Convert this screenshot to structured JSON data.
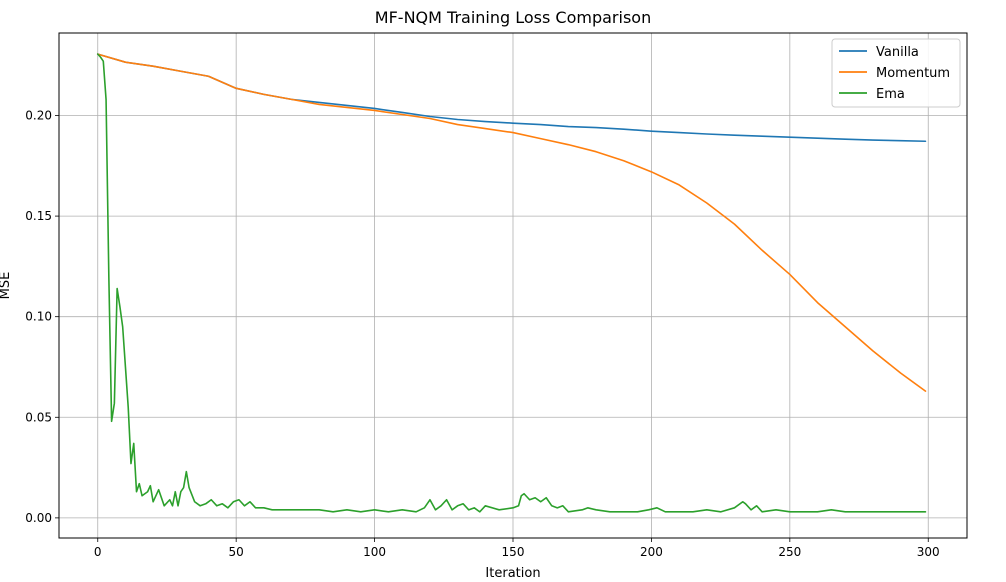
{
  "chart_data": {
    "type": "line",
    "title": "MF-NQM Training Loss Comparison",
    "xlabel": "Iteration",
    "ylabel": "MSE",
    "xlim": [
      -14,
      314
    ],
    "ylim": [
      -0.01,
      0.241
    ],
    "xticks": [
      0,
      50,
      100,
      150,
      200,
      250,
      300
    ],
    "yticks": [
      0.0,
      0.05,
      0.1,
      0.15,
      0.2
    ],
    "xtick_labels": [
      "0",
      "50",
      "100",
      "150",
      "200",
      "250",
      "300"
    ],
    "ytick_labels": [
      "0.00",
      "0.05",
      "0.10",
      "0.15",
      "0.20"
    ],
    "grid": true,
    "legend_position": "top-right",
    "series": [
      {
        "name": "Vanilla",
        "color": "#1f77b4",
        "x": [
          0,
          10,
          20,
          30,
          40,
          50,
          60,
          70,
          80,
          90,
          100,
          110,
          120,
          130,
          140,
          150,
          160,
          170,
          180,
          190,
          200,
          210,
          220,
          230,
          240,
          250,
          260,
          270,
          280,
          290,
          299
        ],
        "y": [
          0.2305,
          0.2265,
          0.2245,
          0.222,
          0.2195,
          0.2135,
          0.2105,
          0.208,
          0.2065,
          0.205,
          0.2035,
          0.2015,
          0.1995,
          0.198,
          0.197,
          0.1962,
          0.1955,
          0.1945,
          0.194,
          0.1932,
          0.1922,
          0.1915,
          0.1908,
          0.1902,
          0.1897,
          0.1892,
          0.1887,
          0.1882,
          0.1878,
          0.1875,
          0.1872
        ]
      },
      {
        "name": "Momentum",
        "color": "#ff7f0e",
        "x": [
          0,
          10,
          20,
          30,
          40,
          50,
          60,
          70,
          80,
          90,
          100,
          110,
          120,
          130,
          140,
          150,
          160,
          170,
          180,
          190,
          200,
          210,
          220,
          230,
          240,
          250,
          260,
          270,
          280,
          290,
          299
        ],
        "y": [
          0.2305,
          0.2265,
          0.2245,
          0.222,
          0.2195,
          0.2135,
          0.2105,
          0.208,
          0.2055,
          0.204,
          0.2025,
          0.2005,
          0.1985,
          0.1955,
          0.1935,
          0.1915,
          0.1885,
          0.1855,
          0.182,
          0.1775,
          0.172,
          0.1655,
          0.1565,
          0.146,
          0.133,
          0.121,
          0.107,
          0.095,
          0.083,
          0.072,
          0.063
        ]
      },
      {
        "name": "Ema",
        "color": "#2ca02c",
        "x": [
          0,
          1,
          2,
          3,
          4,
          5,
          6,
          7,
          8,
          9,
          10,
          11,
          12,
          13,
          14,
          15,
          16,
          17,
          18,
          19,
          20,
          22,
          24,
          26,
          27,
          28,
          29,
          30,
          31,
          32,
          33,
          35,
          37,
          39,
          41,
          43,
          45,
          47,
          49,
          51,
          53,
          55,
          57,
          60,
          63,
          66,
          70,
          75,
          80,
          85,
          90,
          95,
          100,
          105,
          110,
          115,
          118,
          120,
          122,
          124,
          126,
          128,
          130,
          132,
          134,
          136,
          138,
          140,
          145,
          150,
          152,
          153,
          154,
          156,
          158,
          160,
          162,
          164,
          166,
          168,
          170,
          175,
          177,
          180,
          185,
          190,
          195,
          199,
          202,
          205,
          210,
          215,
          220,
          225,
          230,
          233,
          234,
          236,
          238,
          240,
          245,
          250,
          255,
          260,
          265,
          270,
          275,
          280,
          285,
          290,
          295,
          299
        ],
        "y": [
          0.2305,
          0.229,
          0.227,
          0.208,
          0.12,
          0.048,
          0.057,
          0.114,
          0.105,
          0.095,
          0.075,
          0.055,
          0.027,
          0.037,
          0.013,
          0.017,
          0.011,
          0.012,
          0.013,
          0.016,
          0.008,
          0.014,
          0.006,
          0.009,
          0.006,
          0.013,
          0.006,
          0.013,
          0.015,
          0.023,
          0.015,
          0.008,
          0.006,
          0.007,
          0.009,
          0.006,
          0.007,
          0.005,
          0.008,
          0.009,
          0.006,
          0.008,
          0.005,
          0.005,
          0.004,
          0.004,
          0.004,
          0.004,
          0.004,
          0.003,
          0.004,
          0.003,
          0.004,
          0.003,
          0.004,
          0.003,
          0.005,
          0.009,
          0.004,
          0.006,
          0.009,
          0.004,
          0.006,
          0.007,
          0.004,
          0.005,
          0.003,
          0.006,
          0.004,
          0.005,
          0.006,
          0.011,
          0.012,
          0.009,
          0.01,
          0.008,
          0.01,
          0.006,
          0.005,
          0.006,
          0.003,
          0.004,
          0.005,
          0.004,
          0.003,
          0.003,
          0.003,
          0.004,
          0.005,
          0.003,
          0.003,
          0.003,
          0.004,
          0.003,
          0.005,
          0.008,
          0.007,
          0.004,
          0.006,
          0.003,
          0.004,
          0.003,
          0.003,
          0.003,
          0.004,
          0.003,
          0.003,
          0.003,
          0.003,
          0.003,
          0.003,
          0.003
        ]
      }
    ]
  }
}
